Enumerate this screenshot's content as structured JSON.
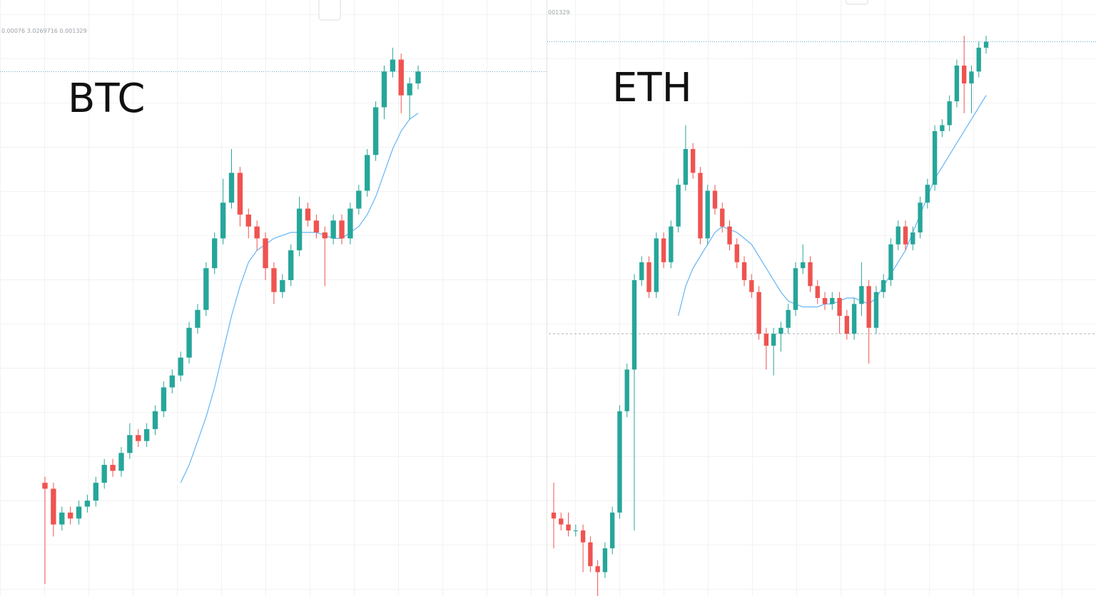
{
  "chart_data": [
    {
      "type": "candlestick",
      "title": "BTC",
      "status_text": "0.00076  3.0269716  0.001329",
      "ylim": [
        0,
        100
      ],
      "up_color": "#26a69a",
      "down_color": "#ef5350",
      "open": [
        19,
        18,
        12,
        14,
        13,
        15,
        16,
        19,
        22,
        21,
        24,
        27,
        26,
        28,
        31,
        35,
        37,
        40,
        45,
        48,
        55,
        60,
        66,
        71,
        64,
        62,
        60,
        55,
        51,
        53,
        58,
        65,
        63,
        61,
        60,
        63,
        60,
        65,
        68,
        74,
        82,
        88,
        90,
        84,
        86
      ],
      "close": [
        18,
        12,
        14,
        13,
        15,
        16,
        19,
        22,
        21,
        24,
        27,
        26,
        28,
        31,
        35,
        37,
        40,
        45,
        48,
        55,
        60,
        66,
        71,
        64,
        62,
        60,
        55,
        51,
        53,
        58,
        65,
        63,
        61,
        60,
        63,
        60,
        65,
        68,
        74,
        82,
        88,
        90,
        84,
        86,
        88
      ],
      "high": [
        20,
        19,
        15,
        15,
        16,
        17,
        20,
        23,
        23,
        25,
        29,
        28,
        29,
        32,
        36,
        38,
        41,
        46,
        49,
        56,
        61,
        70,
        75,
        72,
        65,
        63,
        61,
        56,
        54,
        59,
        67,
        66,
        64,
        62,
        64,
        64,
        66,
        69,
        75,
        83,
        89,
        92,
        91,
        87,
        89
      ],
      "low": [
        2,
        10,
        11,
        12,
        12,
        14,
        15,
        18,
        20,
        20,
        23,
        25,
        25,
        27,
        30,
        34,
        36,
        39,
        44,
        47,
        54,
        59,
        65,
        62,
        60,
        58,
        53,
        49,
        50,
        52,
        57,
        62,
        60,
        52,
        59,
        59,
        59,
        64,
        67,
        73,
        80,
        87,
        81,
        80,
        85
      ],
      "ma": {
        "color": "#64b5f6",
        "values": [
          null,
          null,
          null,
          null,
          null,
          null,
          null,
          null,
          null,
          null,
          null,
          null,
          null,
          null,
          null,
          null,
          19,
          22,
          26,
          30,
          35,
          41,
          47,
          52,
          56,
          58,
          59,
          60,
          60.5,
          61,
          61,
          61,
          61,
          60.5,
          60,
          60,
          61,
          62,
          64,
          67,
          71,
          75,
          78,
          80,
          81
        ]
      }
    },
    {
      "type": "candlestick",
      "title": "ETH",
      "status_text": "001329",
      "ylim": [
        0,
        100
      ],
      "up_color": "#26a69a",
      "down_color": "#ef5350",
      "hline": 44,
      "open": [
        14,
        13,
        12,
        11,
        11,
        9,
        5,
        4,
        8,
        14,
        31,
        38,
        53,
        56,
        51,
        60,
        56,
        62,
        69,
        75,
        71,
        60,
        68,
        65,
        62,
        59,
        56,
        53,
        51,
        44,
        42,
        44,
        45,
        48,
        55,
        56,
        52,
        50,
        49,
        50,
        47,
        44,
        49,
        52,
        45,
        51,
        53,
        59,
        62,
        59,
        61,
        66,
        69,
        78,
        79,
        83,
        89,
        86,
        88,
        92
      ],
      "close": [
        13,
        12,
        11,
        11,
        9,
        5,
        4,
        8,
        14,
        31,
        38,
        53,
        56,
        51,
        60,
        56,
        62,
        69,
        75,
        71,
        60,
        68,
        65,
        62,
        59,
        56,
        53,
        51,
        44,
        42,
        44,
        45,
        48,
        55,
        56,
        52,
        50,
        49,
        50,
        47,
        44,
        49,
        52,
        45,
        51,
        53,
        59,
        62,
        59,
        61,
        66,
        69,
        78,
        79,
        83,
        89,
        86,
        88,
        92,
        93
      ],
      "high": [
        19,
        14,
        14,
        12,
        12,
        10,
        6,
        9,
        15,
        32,
        39,
        54,
        57,
        57,
        61,
        61,
        63,
        70,
        79,
        76,
        72,
        69,
        69,
        66,
        63,
        60,
        57,
        54,
        52,
        45,
        45,
        46,
        49,
        56,
        59,
        57,
        53,
        51,
        51,
        51,
        48,
        50,
        56,
        53,
        52,
        54,
        60,
        63,
        63,
        62,
        67,
        70,
        79,
        80,
        84,
        90,
        94,
        89,
        93,
        94
      ],
      "low": [
        8,
        11,
        10,
        10,
        4,
        4,
        0,
        3,
        7,
        13,
        30,
        11,
        52,
        50,
        50,
        55,
        55,
        61,
        68,
        70,
        59,
        59,
        64,
        61,
        58,
        55,
        52,
        50,
        43,
        38,
        37,
        41,
        44,
        47,
        54,
        51,
        49,
        48,
        48,
        44,
        43,
        43,
        47,
        39,
        44,
        50,
        52,
        58,
        58,
        58,
        60,
        65,
        68,
        77,
        78,
        82,
        81,
        81,
        87,
        91
      ],
      "ma": {
        "color": "#64b5f6",
        "values": [
          null,
          null,
          null,
          null,
          null,
          null,
          null,
          null,
          null,
          null,
          null,
          null,
          null,
          null,
          null,
          null,
          null,
          47,
          52,
          55,
          57,
          59,
          61,
          62,
          61.5,
          61,
          60,
          59,
          57,
          55,
          53,
          51,
          49.5,
          49,
          48.5,
          48.5,
          48.5,
          49,
          49,
          49.5,
          50,
          50,
          49.5,
          49,
          50,
          52,
          54,
          56,
          58,
          61,
          64,
          67,
          70,
          72,
          74,
          76,
          78,
          80,
          82,
          84
        ]
      }
    }
  ]
}
